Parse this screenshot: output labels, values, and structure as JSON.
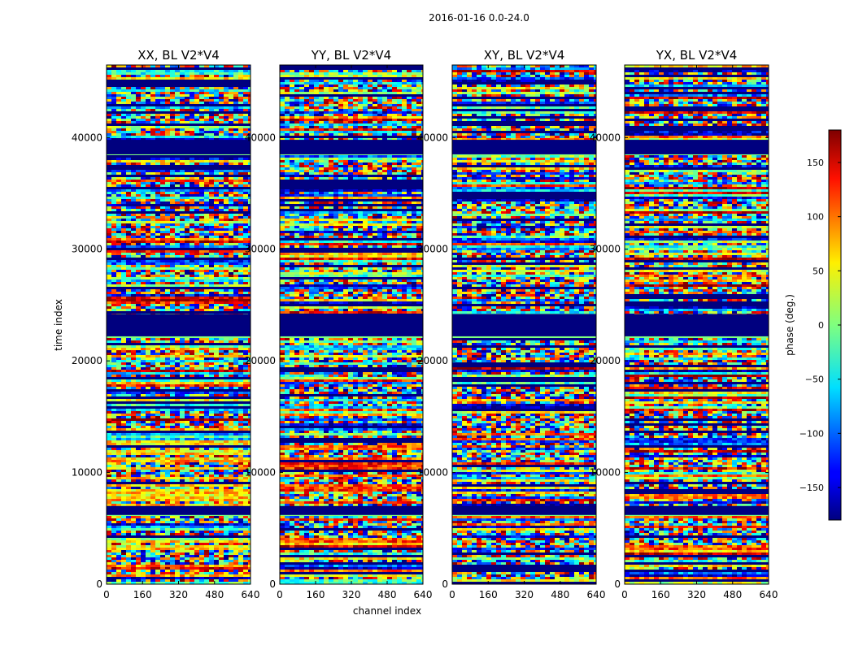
{
  "figure": {
    "suptitle": "2016-01-16 0.0-24.0"
  },
  "chart_data": {
    "type": "heatmap",
    "suptitle": "2016-01-16 0.0-24.0",
    "xlabel": "channel index",
    "ylabel": "time index",
    "xlim": [
      0,
      640
    ],
    "ylim": [
      0,
      46500
    ],
    "xticks": [
      "0",
      "160",
      "320",
      "480",
      "640"
    ],
    "yticks": [
      "0",
      "10000",
      "20000",
      "30000",
      "40000"
    ],
    "colormap": "jet",
    "panels": [
      {
        "title": "XX, BL V2*V4",
        "polarization": "XX"
      },
      {
        "title": "YY, BL V2*V4",
        "polarization": "YY"
      },
      {
        "title": "XY, BL V2*V4",
        "polarization": "XY"
      },
      {
        "title": "YX, BL V2*V4",
        "polarization": "YX"
      }
    ],
    "colorbar": {
      "label": "phase (deg.)",
      "range": [
        -180,
        180
      ],
      "ticks": [
        "150",
        "100",
        "50",
        "0",
        "−50",
        "−100",
        "−150"
      ]
    },
    "flagged_time_bands": [
      [
        6200,
        7000
      ],
      [
        22200,
        24200
      ],
      [
        38500,
        39800
      ]
    ],
    "colors": {
      "flagged": "#00007f",
      "low_phase": "#0000ff",
      "mid_phase": "#7fff7f",
      "high_phase": "#ff0000"
    }
  }
}
